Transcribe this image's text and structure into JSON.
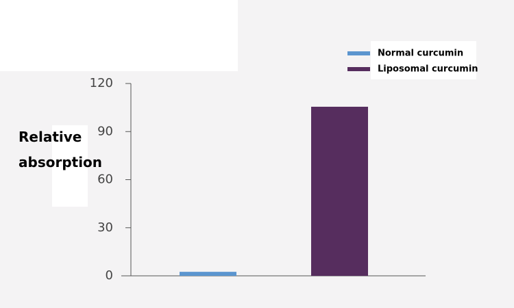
{
  "chart_data": {
    "type": "bar",
    "y_label": "Relative absorption",
    "categories": [
      null,
      null
    ],
    "series": [
      {
        "name": "Normal curcumin",
        "color": "#5b95cf",
        "values": [
          2.5,
          null
        ]
      },
      {
        "name": "Liposomal curcumin",
        "color": "#562d5e",
        "values": [
          null,
          105.5
        ]
      }
    ],
    "ylim": [
      0,
      120
    ],
    "yticks": [
      0,
      30,
      60,
      90,
      120
    ],
    "legend": "top-right"
  }
}
